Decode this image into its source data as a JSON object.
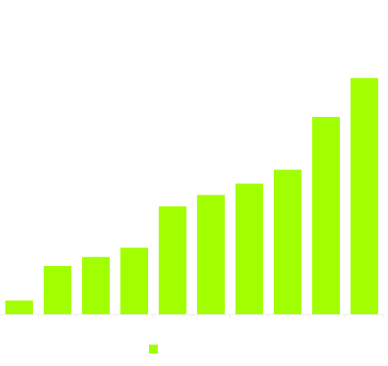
{
  "chart_data": {
    "type": "bar",
    "categories": [
      "",
      "",
      "",
      "",
      "",
      "",
      "",
      "",
      "",
      ""
    ],
    "series": [
      {
        "values": [
          6,
          21,
          25,
          29,
          47,
          52,
          57,
          63,
          86,
          103
        ],
        "color": "#a2ff00"
      }
    ],
    "ylim": [
      0,
      130
    ],
    "grid": false,
    "legend_position": "bottom",
    "axis_color": "#eeeeee"
  }
}
